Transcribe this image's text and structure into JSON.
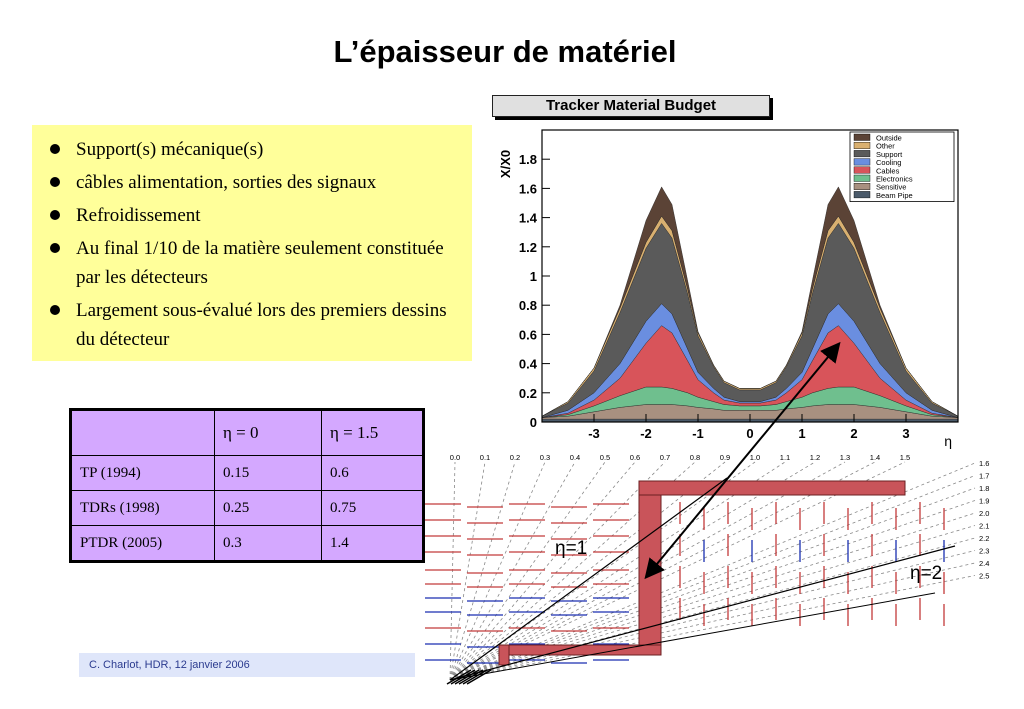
{
  "slide": {
    "title": "L’épaisseur de matériel",
    "bullets": [
      "Support(s) mécanique(s)",
      "câbles alimentation, sorties des signaux",
      "Refroidissement",
      "Au final 1/10 de la matière seulement constituée par les détecteurs",
      "Largement sous-évalué lors des premiers dessins du détecteur"
    ],
    "footer": "C. Charlot, HDR, 12 janvier 2006"
  },
  "table": {
    "header": [
      "",
      "η = 0",
      "η = 1.5"
    ],
    "rows": [
      [
        "TP (1994)",
        "0.15",
        "0.6"
      ],
      [
        "TDRs (1998)",
        "0.25",
        "0.75"
      ],
      [
        "PTDR (2005)",
        "0.3",
        "1.4"
      ]
    ]
  },
  "chart_data": {
    "type": "area",
    "title": "Tracker Material Budget",
    "xlabel": "η",
    "ylabel": "X/X0",
    "xlim": [
      -4,
      4
    ],
    "ylim": [
      0,
      2
    ],
    "x_ticks": [
      "-3",
      "-2",
      "-1",
      "0",
      "1",
      "2",
      "3"
    ],
    "y_ticks": [
      "0",
      "0.2",
      "0.4",
      "0.6",
      "0.8",
      "1",
      "1.2",
      "1.4",
      "1.6",
      "1.8"
    ],
    "x": [
      -4.0,
      -3.5,
      -3.0,
      -2.5,
      -2.0,
      -1.7,
      -1.5,
      -1.2,
      -1.0,
      -0.7,
      -0.5,
      -0.2,
      0.0,
      0.2,
      0.5,
      0.7,
      1.0,
      1.2,
      1.5,
      1.7,
      2.0,
      2.5,
      3.0,
      3.5,
      4.0
    ],
    "series": [
      {
        "name": "Beam Pipe",
        "color": "#4a5a6a",
        "values": [
          0.02,
          0.02,
          0.02,
          0.02,
          0.02,
          0.02,
          0.02,
          0.02,
          0.02,
          0.02,
          0.02,
          0.02,
          0.02,
          0.02,
          0.02,
          0.02,
          0.02,
          0.02,
          0.02,
          0.02,
          0.02,
          0.02,
          0.02,
          0.02,
          0.02
        ]
      },
      {
        "name": "Sensitive",
        "color": "#a89080",
        "values": [
          0.01,
          0.02,
          0.05,
          0.08,
          0.1,
          0.1,
          0.1,
          0.09,
          0.08,
          0.07,
          0.06,
          0.06,
          0.06,
          0.06,
          0.06,
          0.07,
          0.08,
          0.09,
          0.1,
          0.1,
          0.1,
          0.08,
          0.05,
          0.02,
          0.01
        ]
      },
      {
        "name": "Electronics",
        "color": "#6fbf8e",
        "values": [
          0.0,
          0.01,
          0.04,
          0.08,
          0.12,
          0.12,
          0.11,
          0.09,
          0.07,
          0.05,
          0.04,
          0.03,
          0.03,
          0.03,
          0.04,
          0.05,
          0.07,
          0.09,
          0.11,
          0.12,
          0.12,
          0.08,
          0.04,
          0.01,
          0.0
        ]
      },
      {
        "name": "Cables",
        "color": "#d8545a",
        "values": [
          0.0,
          0.01,
          0.04,
          0.12,
          0.3,
          0.42,
          0.38,
          0.22,
          0.12,
          0.06,
          0.03,
          0.02,
          0.02,
          0.02,
          0.03,
          0.06,
          0.12,
          0.22,
          0.38,
          0.42,
          0.3,
          0.12,
          0.04,
          0.01,
          0.0
        ]
      },
      {
        "name": "Cooling",
        "color": "#6a8ee0",
        "values": [
          0.0,
          0.02,
          0.05,
          0.1,
          0.15,
          0.15,
          0.13,
          0.08,
          0.05,
          0.03,
          0.02,
          0.01,
          0.01,
          0.01,
          0.02,
          0.03,
          0.05,
          0.08,
          0.13,
          0.15,
          0.15,
          0.1,
          0.05,
          0.02,
          0.0
        ]
      },
      {
        "name": "Support",
        "color": "#5a5a5a",
        "values": [
          0.01,
          0.05,
          0.15,
          0.35,
          0.5,
          0.55,
          0.52,
          0.38,
          0.25,
          0.15,
          0.1,
          0.08,
          0.08,
          0.08,
          0.1,
          0.15,
          0.25,
          0.38,
          0.52,
          0.55,
          0.5,
          0.35,
          0.15,
          0.05,
          0.01
        ]
      },
      {
        "name": "Other",
        "color": "#d9b070",
        "values": [
          0.0,
          0.01,
          0.02,
          0.03,
          0.04,
          0.05,
          0.05,
          0.03,
          0.02,
          0.01,
          0.01,
          0.01,
          0.01,
          0.01,
          0.01,
          0.01,
          0.02,
          0.03,
          0.05,
          0.05,
          0.04,
          0.03,
          0.02,
          0.01,
          0.0
        ]
      },
      {
        "name": "Outside",
        "color": "#5b4336",
        "values": [
          0.0,
          0.0,
          0.0,
          0.02,
          0.15,
          0.2,
          0.18,
          0.06,
          0.01,
          0.0,
          0.0,
          0.0,
          0.0,
          0.0,
          0.0,
          0.0,
          0.01,
          0.06,
          0.18,
          0.2,
          0.15,
          0.02,
          0.0,
          0.0,
          0.0
        ]
      }
    ],
    "legend_position": "top-right"
  },
  "diagram": {
    "eta_top_labels": [
      "0.0",
      "0.1",
      "0.2",
      "0.3",
      "0.4",
      "0.5",
      "0.6",
      "0.7",
      "0.8",
      "0.9",
      "1.0",
      "1.1",
      "1.2",
      "1.3",
      "1.4",
      "1.5"
    ],
    "eta_side_labels": [
      "1.6",
      "1.7",
      "1.8",
      "1.9",
      "2.0",
      "2.1",
      "2.2",
      "2.3",
      "2.4",
      "2.5"
    ],
    "annotation_eta1": "η=1",
    "annotation_eta2": "η=2"
  }
}
